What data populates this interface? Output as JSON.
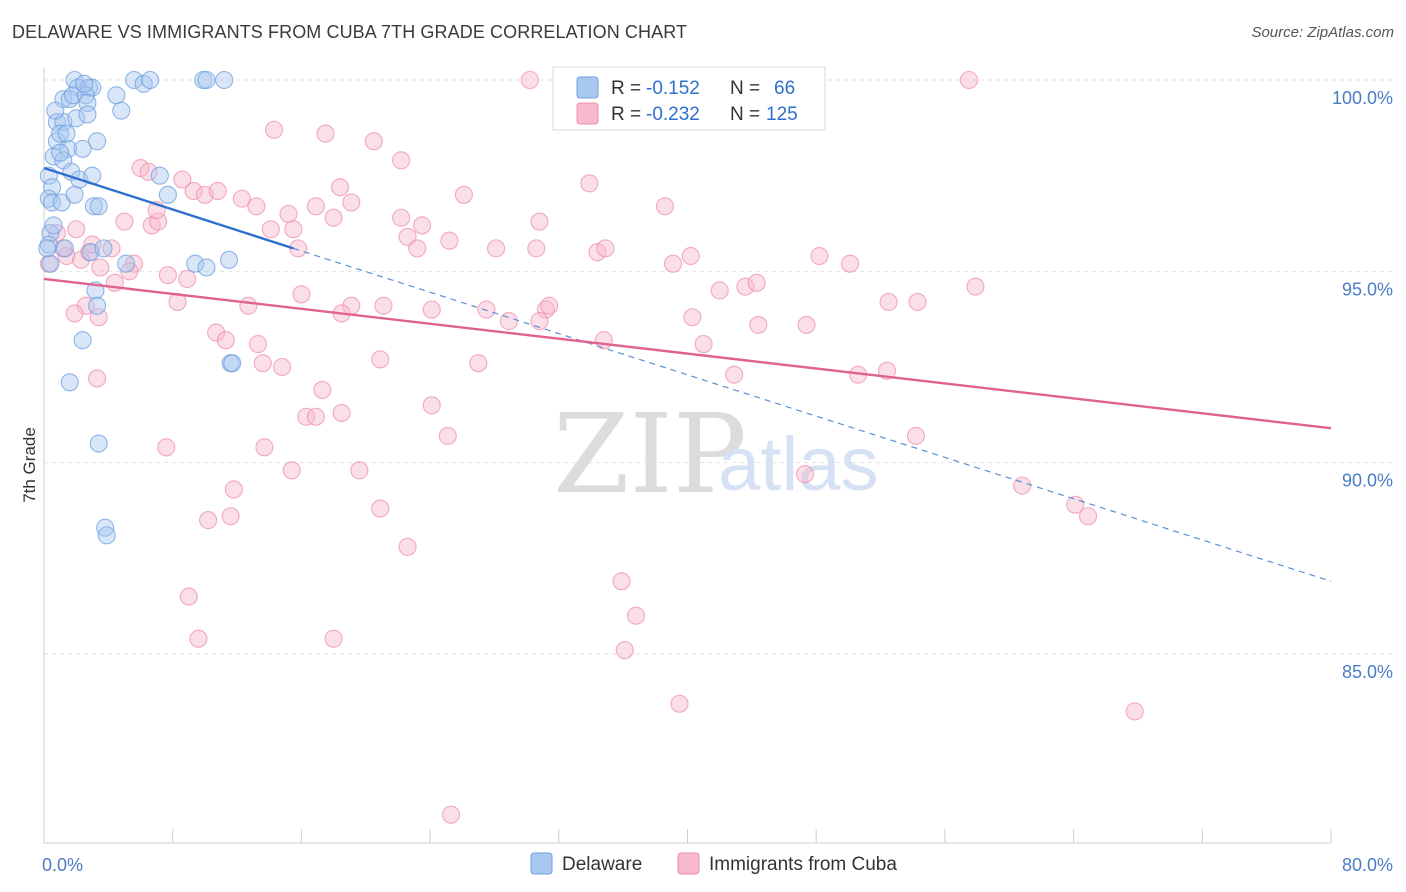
{
  "header": {
    "title": "DELAWARE VS IMMIGRANTS FROM CUBA 7TH GRADE CORRELATION CHART",
    "source": "Source: ZipAtlas.com"
  },
  "watermark": {
    "zip": "ZIP",
    "atlas": "atlas"
  },
  "legend_top": {
    "rows": [
      {
        "r_label": "R =",
        "r_value": "-0.152",
        "n_label": "N =",
        "n_value": "66",
        "color": "#a9c8f0"
      },
      {
        "r_label": "R =",
        "r_value": "-0.232",
        "n_label": "N =",
        "n_value": "125",
        "color": "#f7b9cc"
      }
    ]
  },
  "legend_bottom": {
    "items": [
      {
        "label": "Delaware",
        "color": "#a9c8f0"
      },
      {
        "label": "Immigrants from Cuba",
        "color": "#f7b9cc"
      }
    ]
  },
  "chart_data": {
    "type": "scatter",
    "title": "DELAWARE VS IMMIGRANTS FROM CUBA 7TH GRADE CORRELATION CHART",
    "xlabel": "",
    "ylabel": "7th Grade",
    "xlim": [
      0,
      80
    ],
    "ylim": [
      80.0,
      100.5
    ],
    "x_tick_labels": [
      "0.0%",
      "80.0%"
    ],
    "y_ticks": [
      85,
      90,
      95,
      100
    ],
    "y_tick_labels": [
      "85.0%",
      "90.0%",
      "95.0%",
      "100.0%"
    ],
    "grid": true,
    "legend_position": "top-center",
    "series": [
      {
        "name": "Delaware",
        "color": "#6e9fe0",
        "fill": "#a9c8f0",
        "r": -0.152,
        "n": 66,
        "trend": {
          "x": [
            0,
            15.5
          ],
          "y": [
            97.7,
            95.6
          ],
          "dashed_extension_to": [
            80,
            86.9
          ]
        },
        "points": [
          [
            1.9,
            100.0
          ],
          [
            2.1,
            99.8
          ],
          [
            2.8,
            99.8
          ],
          [
            3.0,
            99.8
          ],
          [
            5.6,
            100.0
          ],
          [
            6.2,
            99.9
          ],
          [
            6.6,
            100.0
          ],
          [
            9.9,
            100.0
          ],
          [
            10.1,
            100.0
          ],
          [
            11.2,
            100.0
          ],
          [
            1.2,
            99.5
          ],
          [
            1.6,
            99.5
          ],
          [
            1.8,
            99.6
          ],
          [
            2.6,
            99.6
          ],
          [
            2.7,
            99.4
          ],
          [
            4.5,
            99.6
          ],
          [
            0.8,
            98.9
          ],
          [
            1.2,
            98.9
          ],
          [
            2.0,
            99.0
          ],
          [
            2.7,
            99.1
          ],
          [
            0.8,
            98.4
          ],
          [
            1.0,
            98.6
          ],
          [
            1.5,
            98.2
          ],
          [
            3.3,
            98.4
          ],
          [
            0.6,
            98.0
          ],
          [
            1.2,
            97.9
          ],
          [
            2.4,
            98.2
          ],
          [
            1.7,
            97.6
          ],
          [
            2.2,
            97.4
          ],
          [
            3.0,
            97.5
          ],
          [
            0.3,
            97.5
          ],
          [
            0.5,
            97.2
          ],
          [
            0.3,
            96.9
          ],
          [
            0.5,
            96.8
          ],
          [
            1.1,
            96.8
          ],
          [
            3.1,
            96.7
          ],
          [
            3.4,
            96.7
          ],
          [
            7.2,
            97.5
          ],
          [
            7.7,
            97.0
          ],
          [
            0.4,
            96.0
          ],
          [
            0.3,
            95.7
          ],
          [
            1.3,
            95.6
          ],
          [
            2.9,
            95.5
          ],
          [
            3.7,
            95.6
          ],
          [
            0.4,
            95.2
          ],
          [
            5.1,
            95.2
          ],
          [
            9.4,
            95.2
          ],
          [
            11.5,
            95.3
          ],
          [
            10.1,
            95.1
          ],
          [
            3.2,
            94.5
          ],
          [
            3.3,
            94.1
          ],
          [
            2.4,
            93.2
          ],
          [
            11.6,
            92.6
          ],
          [
            11.7,
            92.6
          ],
          [
            1.6,
            92.1
          ],
          [
            3.4,
            90.5
          ],
          [
            3.8,
            88.3
          ],
          [
            3.9,
            88.1
          ],
          [
            0.2,
            95.6
          ],
          [
            1.0,
            98.1
          ],
          [
            1.9,
            97.0
          ],
          [
            2.5,
            99.9
          ],
          [
            4.8,
            99.2
          ],
          [
            0.7,
            99.2
          ],
          [
            0.6,
            96.2
          ],
          [
            1.4,
            98.6
          ]
        ]
      },
      {
        "name": "Immigrants from Cuba",
        "color": "#ef8fae",
        "fill": "#f7b9cc",
        "r": -0.232,
        "n": 125,
        "trend": {
          "x": [
            0,
            80
          ],
          "y": [
            94.8,
            90.9
          ]
        },
        "points": [
          [
            30.2,
            100.0
          ],
          [
            57.5,
            100.0
          ],
          [
            14.3,
            98.7
          ],
          [
            17.5,
            98.6
          ],
          [
            20.5,
            98.4
          ],
          [
            22.2,
            97.9
          ],
          [
            6.0,
            97.7
          ],
          [
            33.9,
            97.3
          ],
          [
            8.6,
            97.4
          ],
          [
            18.4,
            97.2
          ],
          [
            9.3,
            97.1
          ],
          [
            10.0,
            97.0
          ],
          [
            10.8,
            97.1
          ],
          [
            12.3,
            96.9
          ],
          [
            13.2,
            96.7
          ],
          [
            19.1,
            96.8
          ],
          [
            26.1,
            97.0
          ],
          [
            38.6,
            96.7
          ],
          [
            0.8,
            96.0
          ],
          [
            5.0,
            96.3
          ],
          [
            6.7,
            96.2
          ],
          [
            7.1,
            96.3
          ],
          [
            15.2,
            96.5
          ],
          [
            15.5,
            96.1
          ],
          [
            16.9,
            96.7
          ],
          [
            18.0,
            96.4
          ],
          [
            22.6,
            95.9
          ],
          [
            23.5,
            96.2
          ],
          [
            30.8,
            96.3
          ],
          [
            2.8,
            95.5
          ],
          [
            1.4,
            95.4
          ],
          [
            2.3,
            95.3
          ],
          [
            1.2,
            95.6
          ],
          [
            4.2,
            95.6
          ],
          [
            5.6,
            95.2
          ],
          [
            15.8,
            95.6
          ],
          [
            23.2,
            95.6
          ],
          [
            28.1,
            95.6
          ],
          [
            30.6,
            95.6
          ],
          [
            34.4,
            95.5
          ],
          [
            34.9,
            95.6
          ],
          [
            39.1,
            95.2
          ],
          [
            40.2,
            95.4
          ],
          [
            48.2,
            95.4
          ],
          [
            50.1,
            95.2
          ],
          [
            0.3,
            95.2
          ],
          [
            3.5,
            95.1
          ],
          [
            4.4,
            94.7
          ],
          [
            7.7,
            94.9
          ],
          [
            16.0,
            94.4
          ],
          [
            19.1,
            94.1
          ],
          [
            21.1,
            94.1
          ],
          [
            24.1,
            94.0
          ],
          [
            27.5,
            94.0
          ],
          [
            28.9,
            93.7
          ],
          [
            31.2,
            94.0
          ],
          [
            31.4,
            94.1
          ],
          [
            42.0,
            94.5
          ],
          [
            43.6,
            94.6
          ],
          [
            44.3,
            94.7
          ],
          [
            52.5,
            94.2
          ],
          [
            54.3,
            94.2
          ],
          [
            57.9,
            94.6
          ],
          [
            2.6,
            94.1
          ],
          [
            3.4,
            93.8
          ],
          [
            10.7,
            93.4
          ],
          [
            12.7,
            94.1
          ],
          [
            18.5,
            93.9
          ],
          [
            30.8,
            93.7
          ],
          [
            34.8,
            93.2
          ],
          [
            40.3,
            93.8
          ],
          [
            41.0,
            93.1
          ],
          [
            44.4,
            93.6
          ],
          [
            47.4,
            93.6
          ],
          [
            11.3,
            93.2
          ],
          [
            13.3,
            93.1
          ],
          [
            20.9,
            92.7
          ],
          [
            27.0,
            92.6
          ],
          [
            42.9,
            92.3
          ],
          [
            50.6,
            92.3
          ],
          [
            52.4,
            92.4
          ],
          [
            3.3,
            92.2
          ],
          [
            13.6,
            92.6
          ],
          [
            17.3,
            91.9
          ],
          [
            14.8,
            92.5
          ],
          [
            24.1,
            91.5
          ],
          [
            16.3,
            91.2
          ],
          [
            18.5,
            91.3
          ],
          [
            16.9,
            91.2
          ],
          [
            54.2,
            90.7
          ],
          [
            25.1,
            90.7
          ],
          [
            7.6,
            90.4
          ],
          [
            13.7,
            90.4
          ],
          [
            15.4,
            89.8
          ],
          [
            19.6,
            89.8
          ],
          [
            11.8,
            89.3
          ],
          [
            47.3,
            89.7
          ],
          [
            60.8,
            89.4
          ],
          [
            64.1,
            88.9
          ],
          [
            64.9,
            88.6
          ],
          [
            20.9,
            88.8
          ],
          [
            10.2,
            88.5
          ],
          [
            11.6,
            88.6
          ],
          [
            22.6,
            87.8
          ],
          [
            35.9,
            86.9
          ],
          [
            36.8,
            86.0
          ],
          [
            9.0,
            86.5
          ],
          [
            18.0,
            85.4
          ],
          [
            9.6,
            85.4
          ],
          [
            36.1,
            85.1
          ],
          [
            39.5,
            83.7
          ],
          [
            67.8,
            83.5
          ],
          [
            25.3,
            80.8
          ],
          [
            6.5,
            97.6
          ],
          [
            3.0,
            95.7
          ],
          [
            2.0,
            96.1
          ],
          [
            5.3,
            95.0
          ],
          [
            14.1,
            96.1
          ],
          [
            8.9,
            94.8
          ],
          [
            1.9,
            93.9
          ],
          [
            7.0,
            96.6
          ],
          [
            22.2,
            96.4
          ],
          [
            25.2,
            95.8
          ],
          [
            8.3,
            94.2
          ]
        ]
      }
    ]
  }
}
